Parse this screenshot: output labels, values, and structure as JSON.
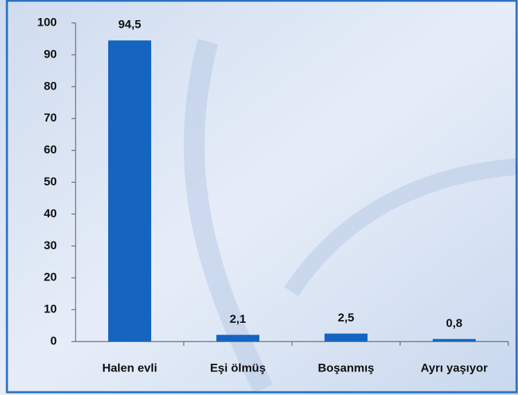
{
  "chart_data": {
    "type": "bar",
    "categories": [
      "Halen evli",
      "Eşi ölmüş",
      "Boşanmış",
      "Ayrı yaşıyor"
    ],
    "values": [
      94.5,
      2.1,
      2.5,
      0.8
    ],
    "value_labels": [
      "94,5",
      "2,1",
      "2,5",
      "0,8"
    ],
    "color": "#1565c0",
    "ylim": [
      0,
      100
    ],
    "yticks": [
      0,
      10,
      20,
      30,
      40,
      50,
      60,
      70,
      80,
      90,
      100
    ],
    "grid": false
  }
}
